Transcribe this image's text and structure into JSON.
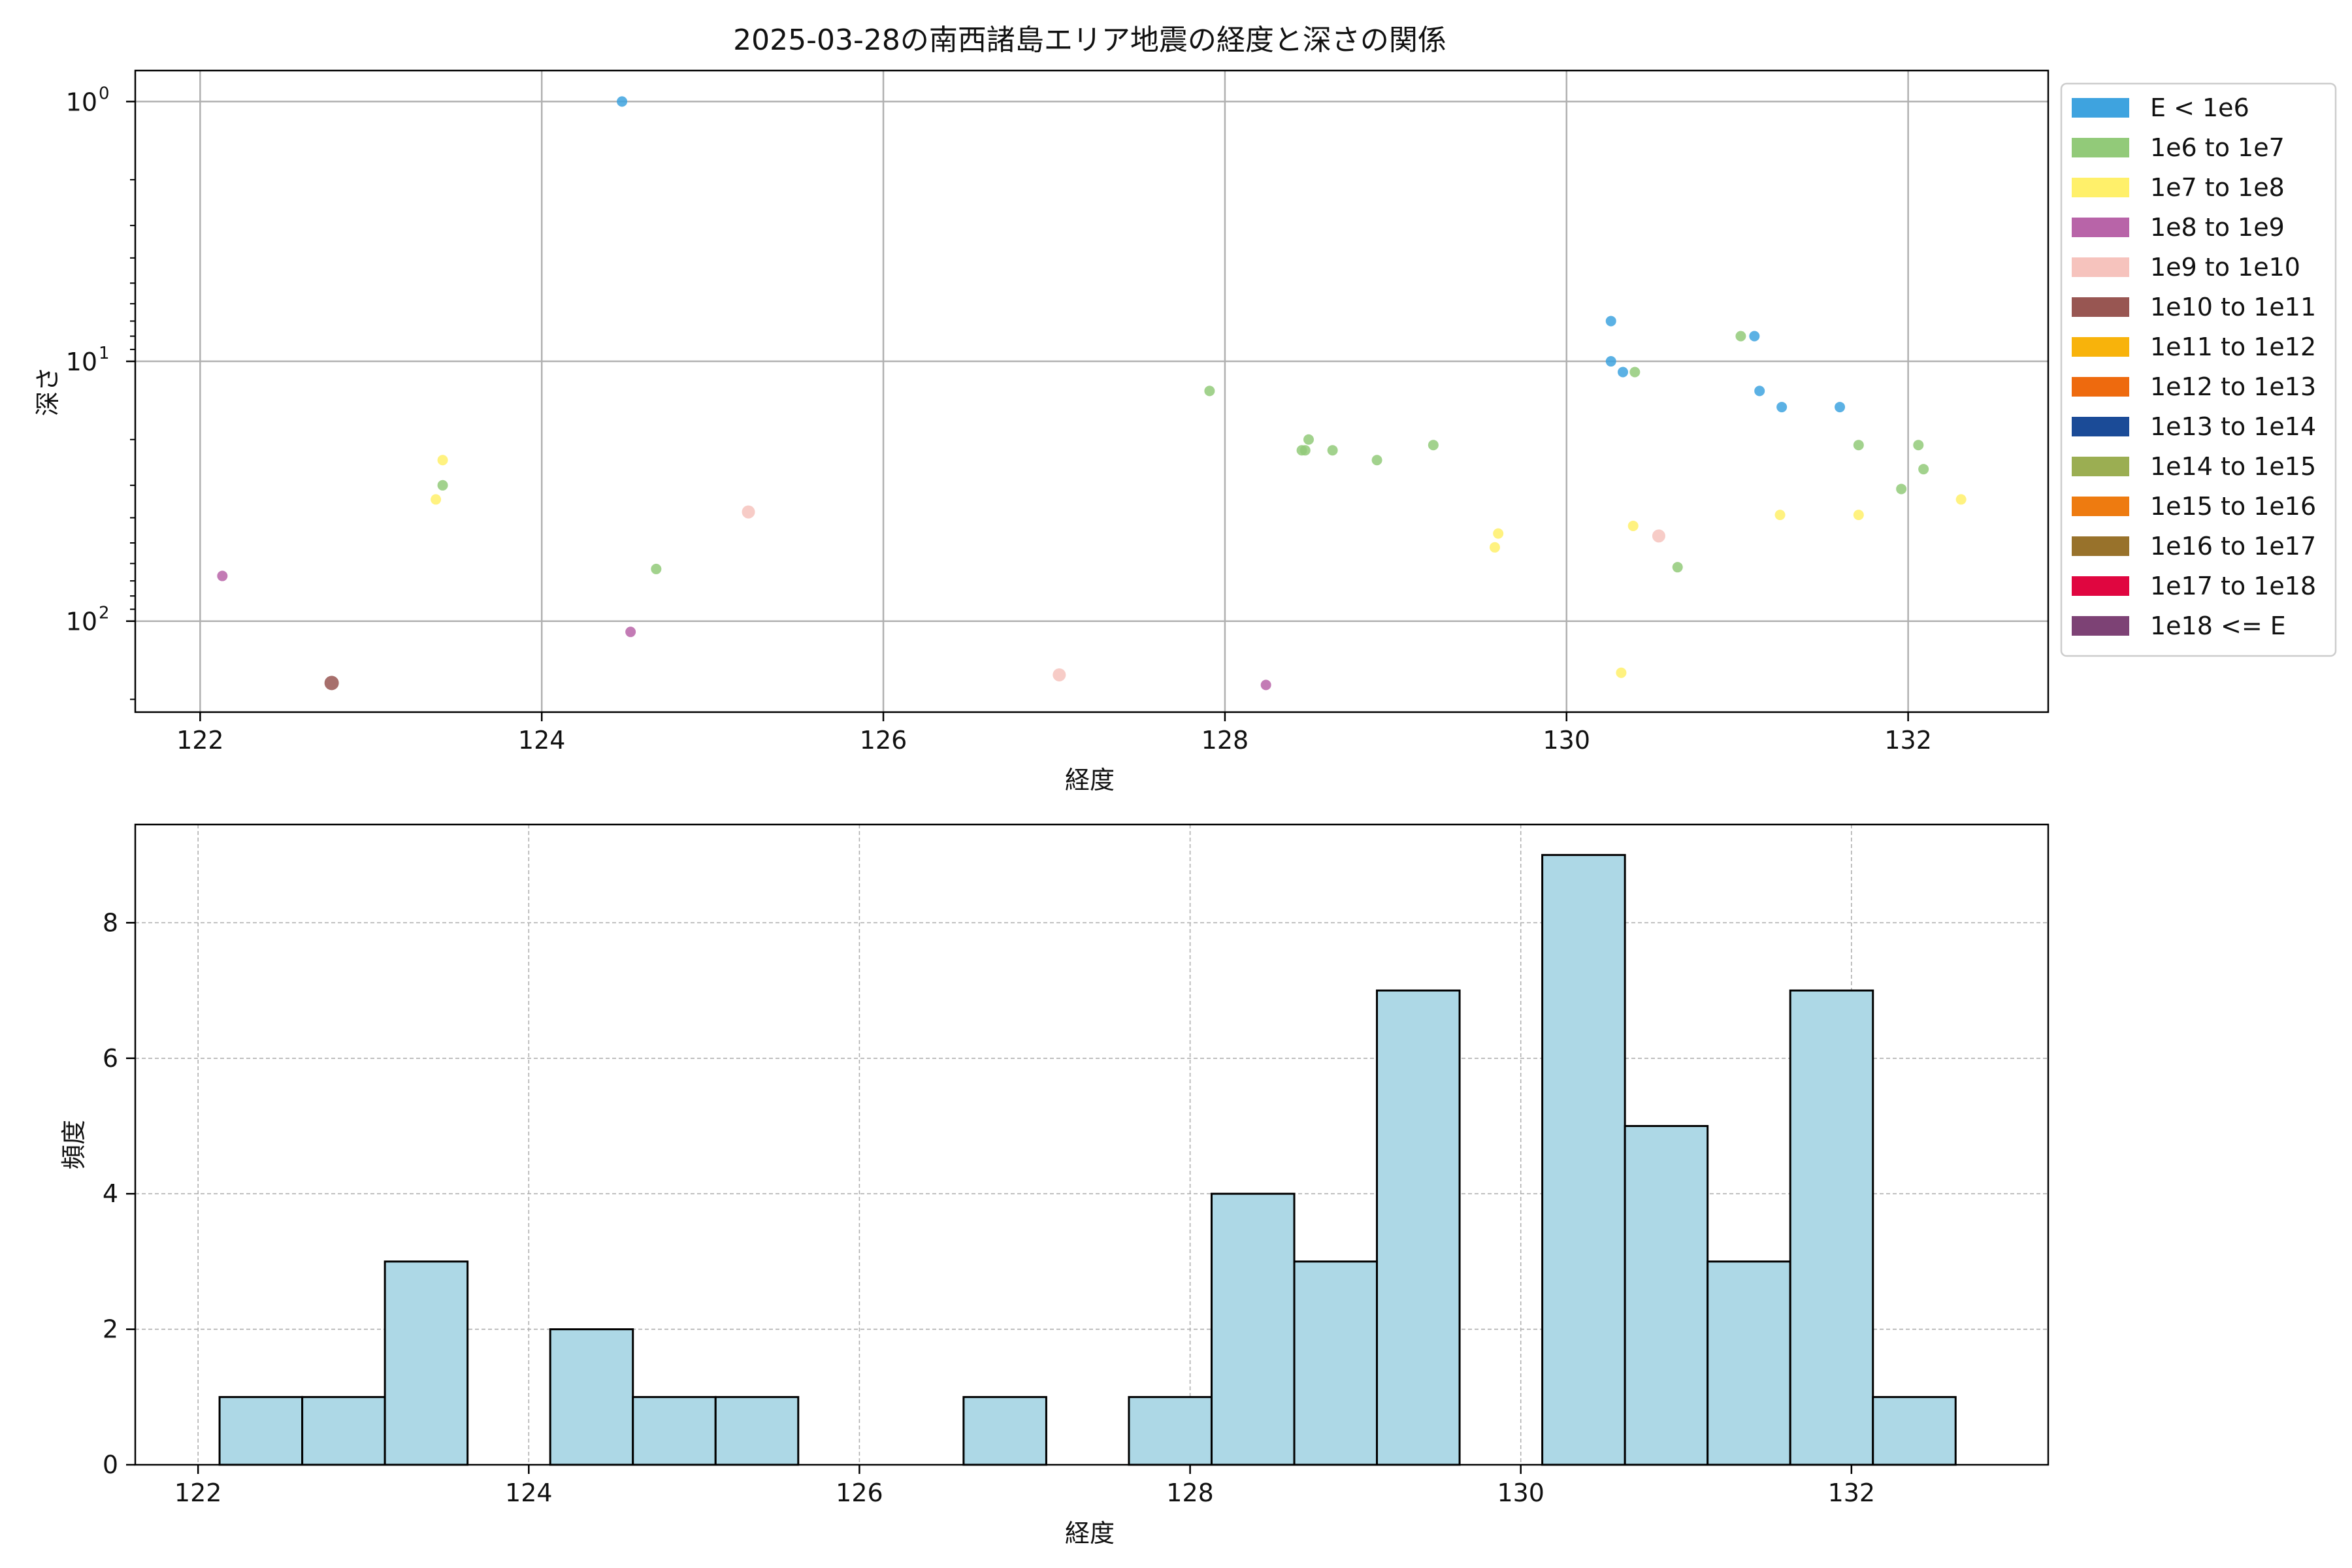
{
  "colors": {
    "E_lt_1e6": "#3ea3df",
    "1e6_1e7": "#92ca79",
    "1e7_1e8": "#fff06a",
    "1e8_1e9": "#b864a8",
    "1e9_1e10": "#f6c3bd",
    "1e10_1e11": "#985652",
    "1e11_1e12": "#f8b30b",
    "1e12_1e13": "#ee6a0e",
    "1e13_1e14": "#1b4b97",
    "1e14_1e15": "#9bae52",
    "1e15_1e16": "#ee7b10",
    "1e16_1e17": "#98722b",
    "1e17_1e18": "#e00640",
    "1e18_ge": "#7d4275",
    "hist_fill": "#add8e6",
    "hist_edge": "#000000",
    "grid": "#b0b0b0"
  },
  "chart_data": [
    {
      "type": "scatter",
      "title": "2025-03-28の南西諸島エリア地震の経度と深さの関係",
      "xlabel": "経度",
      "ylabel": "深さ",
      "xlim": [
        121.62,
        132.82
      ],
      "ylim_log": [
        224,
        0.76
      ],
      "y_scale": "log",
      "y_inverted": true,
      "grid": true,
      "xticks": [
        {
          "v": 122,
          "label": "122"
        },
        {
          "v": 124,
          "label": "124"
        },
        {
          "v": 126,
          "label": "126"
        },
        {
          "v": 128,
          "label": "128"
        },
        {
          "v": 130,
          "label": "130"
        },
        {
          "v": 132,
          "label": "132"
        }
      ],
      "yticks": [
        {
          "v": 1,
          "base": "10",
          "exp": "0"
        },
        {
          "v": 10,
          "base": "10",
          "exp": "1"
        },
        {
          "v": 100,
          "base": "10",
          "exp": "2"
        }
      ],
      "legend_position": "outside-right-top",
      "legend": [
        {
          "label": "E < 1e6",
          "color_key": "E_lt_1e6"
        },
        {
          "label": "1e6 to 1e7",
          "color_key": "1e6_1e7"
        },
        {
          "label": "1e7 to 1e8",
          "color_key": "1e7_1e8"
        },
        {
          "label": "1e8 to 1e9",
          "color_key": "1e8_1e9"
        },
        {
          "label": "1e9 to 1e10",
          "color_key": "1e9_1e10"
        },
        {
          "label": "1e10 to 1e11",
          "color_key": "1e10_1e11"
        },
        {
          "label": "1e11 to 1e12",
          "color_key": "1e11_1e12"
        },
        {
          "label": "1e12 to 1e13",
          "color_key": "1e12_1e13"
        },
        {
          "label": "1e13 to 1e14",
          "color_key": "1e13_1e14"
        },
        {
          "label": "1e14 to 1e15",
          "color_key": "1e14_1e15"
        },
        {
          "label": "1e15 to 1e16",
          "color_key": "1e15_1e16"
        },
        {
          "label": "1e16 to 1e17",
          "color_key": "1e16_1e17"
        },
        {
          "label": "1e17 to 1e18",
          "color_key": "1e17_1e18"
        },
        {
          "label": "1e18 <= E",
          "color_key": "1e18_ge"
        }
      ],
      "points": [
        {
          "x": 124.47,
          "y": 1.0,
          "cls": "E_lt_1e6"
        },
        {
          "x": 130.26,
          "y": 7.0,
          "cls": "E_lt_1e6"
        },
        {
          "x": 130.26,
          "y": 10.0,
          "cls": "E_lt_1e6"
        },
        {
          "x": 130.33,
          "y": 11.0,
          "cls": "E_lt_1e6"
        },
        {
          "x": 131.1,
          "y": 8.0,
          "cls": "E_lt_1e6"
        },
        {
          "x": 131.13,
          "y": 13.0,
          "cls": "E_lt_1e6"
        },
        {
          "x": 131.26,
          "y": 15.0,
          "cls": "E_lt_1e6"
        },
        {
          "x": 131.6,
          "y": 15.0,
          "cls": "E_lt_1e6"
        },
        {
          "x": 123.42,
          "y": 30.0,
          "cls": "1e6_1e7"
        },
        {
          "x": 124.67,
          "y": 63.0,
          "cls": "1e6_1e7"
        },
        {
          "x": 127.91,
          "y": 13.0,
          "cls": "1e6_1e7"
        },
        {
          "x": 128.45,
          "y": 22.0,
          "cls": "1e6_1e7"
        },
        {
          "x": 128.47,
          "y": 22.0,
          "cls": "1e6_1e7"
        },
        {
          "x": 128.49,
          "y": 20.0,
          "cls": "1e6_1e7"
        },
        {
          "x": 128.63,
          "y": 22.0,
          "cls": "1e6_1e7"
        },
        {
          "x": 128.89,
          "y": 24.0,
          "cls": "1e6_1e7"
        },
        {
          "x": 129.22,
          "y": 21.0,
          "cls": "1e6_1e7"
        },
        {
          "x": 130.4,
          "y": 11.0,
          "cls": "1e6_1e7"
        },
        {
          "x": 130.65,
          "y": 62.0,
          "cls": "1e6_1e7"
        },
        {
          "x": 131.02,
          "y": 8.0,
          "cls": "1e6_1e7"
        },
        {
          "x": 131.71,
          "y": 21.0,
          "cls": "1e6_1e7"
        },
        {
          "x": 131.96,
          "y": 31.0,
          "cls": "1e6_1e7"
        },
        {
          "x": 132.06,
          "y": 21.0,
          "cls": "1e6_1e7"
        },
        {
          "x": 132.09,
          "y": 26.0,
          "cls": "1e6_1e7"
        },
        {
          "x": 123.38,
          "y": 34.0,
          "cls": "1e7_1e8"
        },
        {
          "x": 123.42,
          "y": 24.0,
          "cls": "1e7_1e8"
        },
        {
          "x": 129.58,
          "y": 52.0,
          "cls": "1e7_1e8"
        },
        {
          "x": 129.6,
          "y": 46.0,
          "cls": "1e7_1e8"
        },
        {
          "x": 130.32,
          "y": 158.0,
          "cls": "1e7_1e8"
        },
        {
          "x": 130.39,
          "y": 43.0,
          "cls": "1e7_1e8"
        },
        {
          "x": 131.25,
          "y": 39.0,
          "cls": "1e7_1e8"
        },
        {
          "x": 131.71,
          "y": 39.0,
          "cls": "1e7_1e8"
        },
        {
          "x": 132.31,
          "y": 34.0,
          "cls": "1e7_1e8"
        },
        {
          "x": 122.13,
          "y": 67.0,
          "cls": "1e8_1e9"
        },
        {
          "x": 124.52,
          "y": 110.0,
          "cls": "1e8_1e9"
        },
        {
          "x": 128.24,
          "y": 176.0,
          "cls": "1e8_1e9"
        },
        {
          "x": 125.21,
          "y": 38.0,
          "cls": "1e9_1e10"
        },
        {
          "x": 127.03,
          "y": 161.0,
          "cls": "1e9_1e10"
        },
        {
          "x": 130.54,
          "y": 47.0,
          "cls": "1e9_1e10"
        },
        {
          "x": 122.77,
          "y": 173.0,
          "cls": "1e10_1e11"
        }
      ]
    },
    {
      "type": "bar",
      "xlabel": "経度",
      "ylabel": "頻度",
      "xlim": [
        121.62,
        133.19
      ],
      "ylim": [
        0,
        9.45
      ],
      "grid": true,
      "grid_style": "dashed",
      "xticks": [
        {
          "v": 122,
          "label": "122"
        },
        {
          "v": 124,
          "label": "124"
        },
        {
          "v": 126,
          "label": "126"
        },
        {
          "v": 128,
          "label": "128"
        },
        {
          "v": 130,
          "label": "130"
        },
        {
          "v": 132,
          "label": "132"
        }
      ],
      "yticks": [
        {
          "v": 0,
          "label": "0"
        },
        {
          "v": 2,
          "label": "2"
        },
        {
          "v": 4,
          "label": "4"
        },
        {
          "v": 6,
          "label": "6"
        },
        {
          "v": 8,
          "label": "8"
        }
      ],
      "bin_start": 122.13,
      "bin_width": 0.5,
      "counts": [
        1,
        1,
        3,
        0,
        2,
        1,
        1,
        0,
        0,
        1,
        0,
        1,
        4,
        3,
        7,
        0,
        9,
        5,
        3,
        7,
        1
      ]
    }
  ]
}
